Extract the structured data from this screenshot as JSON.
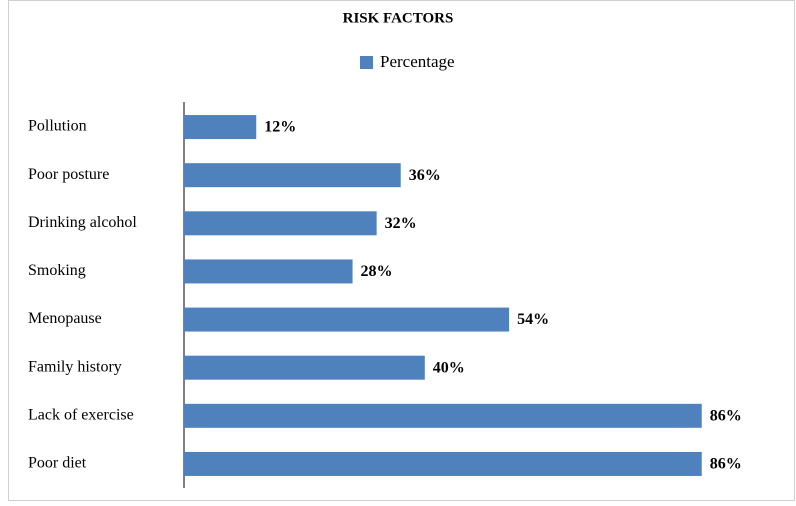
{
  "chart_data": {
    "type": "bar",
    "orientation": "horizontal",
    "title": "RISK FACTORS",
    "categories": [
      "Pollution",
      "Poor posture",
      "Drinking alcohol",
      "Smoking",
      "Menopause",
      "Family history",
      "Lack of exercise",
      "Poor diet"
    ],
    "series": [
      {
        "name": "Percentage",
        "color": "#4f81bd",
        "values": [
          12,
          36,
          32,
          28,
          54,
          40,
          86,
          86
        ],
        "value_labels": [
          "12%",
          "36%",
          "32%",
          "28%",
          "54%",
          "40%",
          "86%",
          "86%"
        ]
      }
    ],
    "xlim": [
      0,
      100
    ],
    "legend": "top"
  }
}
